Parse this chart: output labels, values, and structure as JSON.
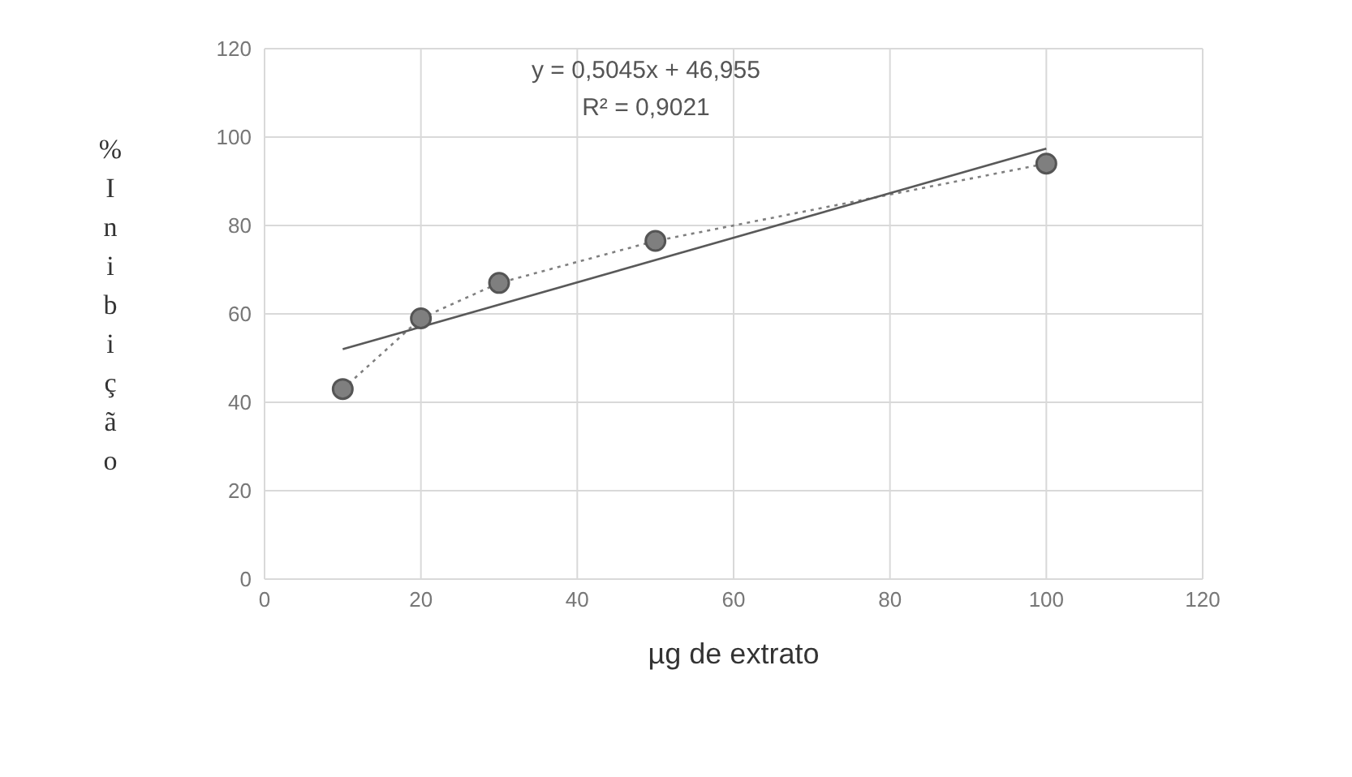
{
  "chart_data": {
    "type": "line",
    "xlabel": "µg de extrato",
    "ylabel": "% Inibição",
    "annotations": [
      "y = 0,5045x + 46,955",
      "R² = 0,9021"
    ],
    "series": [
      {
        "x": [
          10,
          20,
          30,
          50,
          100
        ],
        "values": [
          43,
          59,
          67,
          76.5,
          94
        ],
        "color": "#7f7f7f",
        "marker": "circle",
        "line_style": "dotted"
      },
      {
        "x": [
          10,
          100
        ],
        "values": [
          52,
          97.4
        ],
        "color": "#595959",
        "marker": "none",
        "line_style": "solid"
      }
    ],
    "xlim": [
      0,
      120
    ],
    "xticks": [
      0,
      20,
      40,
      60,
      80,
      100,
      120
    ],
    "ylim": [
      0,
      120
    ],
    "yticks": [
      0,
      20,
      40,
      60,
      80,
      100,
      120
    ],
    "grid": true
  }
}
